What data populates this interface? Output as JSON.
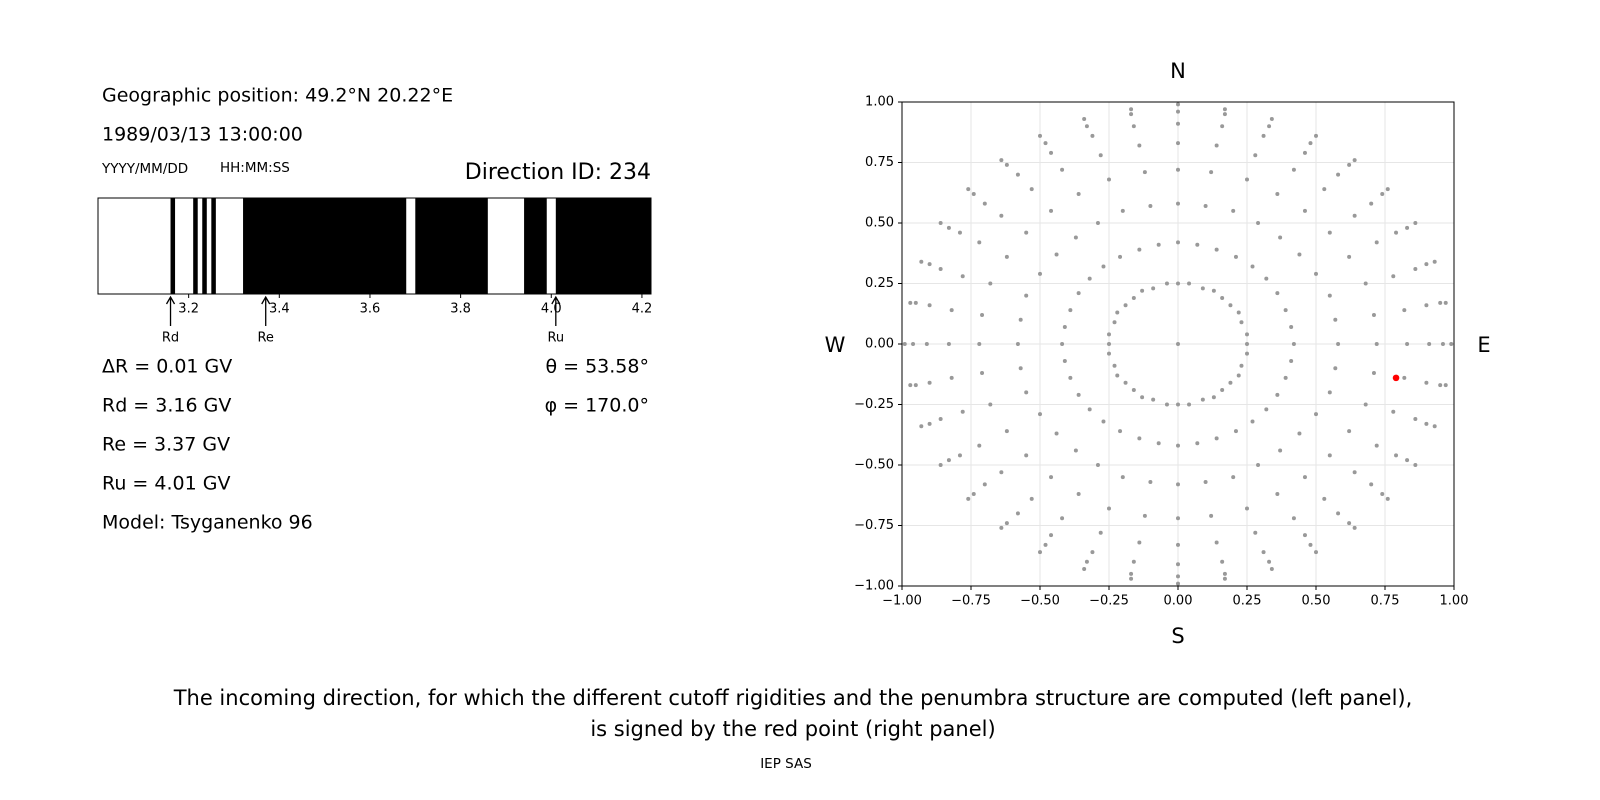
{
  "header": {
    "position": "Geographic position: 49.2°N 20.22°E",
    "datetime": "1989/03/13 13:00:00",
    "date_format": "YYYY/MM/DD",
    "time_format": "HH:MM:SS",
    "direction_id": "Direction ID: 234"
  },
  "params": {
    "delta_r": "ΔR = 0.01 GV",
    "theta": "θ = 53.58°",
    "phi": "φ = 170.0°",
    "model": "Model: Tsyganenko 96"
  },
  "chart_data": [
    {
      "type": "penumbra",
      "xlim": [
        3.0,
        4.22
      ],
      "xticks": [
        3.2,
        3.4,
        3.6,
        3.8,
        {
          "value": 4,
          "label": "4.0"
        },
        4.2
      ],
      "color": "#000000",
      "segments": [
        [
          3.16,
          3.17
        ],
        [
          3.21,
          3.22
        ],
        [
          3.23,
          3.24
        ],
        [
          3.25,
          3.26
        ],
        [
          3.32,
          3.68
        ],
        [
          3.7,
          3.86
        ],
        [
          3.94,
          3.99
        ],
        [
          4.01,
          4.22
        ]
      ],
      "cutoffs": [
        {
          "name": "Rd",
          "value": 3.16,
          "label": "Rd = 3.16 GV"
        },
        {
          "name": "Re",
          "value": 3.37,
          "label": "Re = 3.37 GV"
        },
        {
          "name": "Ru",
          "value": 4.01,
          "label": "Ru = 4.01 GV"
        }
      ]
    },
    {
      "type": "scatter",
      "xlim": [
        -1,
        1
      ],
      "ylim": [
        -1,
        1
      ],
      "grid": true,
      "xticks": [
        {
          "value": -1,
          "label": "−1.00"
        },
        {
          "value": -0.75,
          "label": "−0.75"
        },
        {
          "value": -0.5,
          "label": "−0.50"
        },
        {
          "value": -0.25,
          "label": "−0.25"
        },
        {
          "value": 0,
          "label": "0.00"
        },
        {
          "value": 0.25,
          "label": "0.25"
        },
        {
          "value": 0.5,
          "label": "0.50"
        },
        {
          "value": 0.75,
          "label": "0.75"
        },
        {
          "value": 1,
          "label": "1.00"
        }
      ],
      "yticks": [
        {
          "value": -1,
          "label": "−1.00"
        },
        {
          "value": -0.75,
          "label": "−0.75"
        },
        {
          "value": -0.5,
          "label": "−0.50"
        },
        {
          "value": -0.25,
          "label": "−0.25"
        },
        {
          "value": 0,
          "label": "0.00"
        },
        {
          "value": 0.25,
          "label": "0.25"
        },
        {
          "value": 0.5,
          "label": "0.50"
        },
        {
          "value": 0.75,
          "label": "0.75"
        },
        {
          "value": 1,
          "label": "1.00"
        }
      ],
      "compass": {
        "north": "N",
        "south": "S",
        "east": "E",
        "west": "W"
      },
      "series": [
        {
          "color": "#999999",
          "x": [
            0.25,
            0.25,
            0.23,
            0.22,
            0.19,
            0.16,
            0.13,
            0.09,
            0.04,
            0,
            -0.04,
            -0.09,
            -0.13,
            -0.16,
            -0.19,
            -0.22,
            -0.23,
            -0.25,
            -0.25,
            -0.25,
            -0.23,
            -0.22,
            -0.19,
            -0.16,
            -0.13,
            -0.09,
            -0.04,
            0,
            0.04,
            0.09,
            0.13,
            0.16,
            0.19,
            0.22,
            0.23,
            0.25,
            0.42,
            0.41,
            0.39,
            0.36,
            0.32,
            0.27,
            0.21,
            0.14,
            0.07,
            0,
            -0.07,
            -0.14,
            -0.21,
            -0.27,
            -0.32,
            -0.36,
            -0.39,
            -0.41,
            -0.42,
            -0.41,
            -0.39,
            -0.36,
            -0.32,
            -0.27,
            -0.21,
            -0.14,
            -0.07,
            0,
            0.07,
            0.14,
            0.21,
            0.27,
            0.32,
            0.36,
            0.39,
            0.41,
            0.58,
            0.57,
            0.55,
            0.5,
            0.44,
            0.37,
            0.29,
            0.2,
            0.1,
            0,
            -0.1,
            -0.2,
            -0.29,
            -0.37,
            -0.44,
            -0.5,
            -0.55,
            -0.57,
            -0.58,
            -0.57,
            -0.55,
            -0.5,
            -0.44,
            -0.37,
            -0.29,
            -0.2,
            -0.1,
            0,
            0.1,
            0.2,
            0.29,
            0.37,
            0.44,
            0.5,
            0.55,
            0.57,
            0.72,
            0.71,
            0.68,
            0.62,
            0.55,
            0.46,
            0.36,
            0.25,
            0.12,
            0,
            -0.12,
            -0.25,
            -0.36,
            -0.46,
            -0.55,
            -0.62,
            -0.68,
            -0.71,
            -0.72,
            -0.71,
            -0.68,
            -0.62,
            -0.55,
            -0.46,
            -0.36,
            -0.25,
            -0.12,
            0,
            0.12,
            0.25,
            0.36,
            0.46,
            0.55,
            0.62,
            0.68,
            0.71,
            0.83,
            0.82,
            0.78,
            0.72,
            0.64,
            0.53,
            0.42,
            0.28,
            0.14,
            0,
            -0.14,
            -0.28,
            -0.42,
            -0.53,
            -0.64,
            -0.72,
            -0.78,
            -0.82,
            -0.83,
            -0.82,
            -0.78,
            -0.72,
            -0.64,
            -0.53,
            -0.42,
            -0.28,
            -0.14,
            0,
            0.14,
            0.28,
            0.42,
            0.53,
            0.64,
            0.72,
            0.78,
            0.82,
            0.91,
            0.9,
            0.86,
            0.79,
            0.7,
            0.58,
            0.46,
            0.31,
            0.16,
            0,
            -0.16,
            -0.31,
            -0.46,
            -0.58,
            -0.7,
            -0.79,
            -0.86,
            -0.9,
            -0.91,
            -0.9,
            -0.86,
            -0.79,
            -0.7,
            -0.58,
            -0.46,
            -0.31,
            -0.16,
            0,
            0.16,
            0.31,
            0.46,
            0.58,
            0.7,
            0.79,
            0.86,
            0.9,
            0.96,
            0.95,
            0.9,
            0.83,
            0.74,
            0.62,
            0.48,
            0.33,
            0.17,
            0,
            -0.17,
            -0.33,
            -0.48,
            -0.62,
            -0.74,
            -0.83,
            -0.9,
            -0.95,
            -0.96,
            -0.95,
            -0.9,
            -0.83,
            -0.74,
            -0.62,
            -0.48,
            -0.33,
            -0.17,
            0,
            0.17,
            0.33,
            0.48,
            0.62,
            0.74,
            0.83,
            0.9,
            0.95,
            0.99,
            0.97,
            0.93,
            0.86,
            0.76,
            0.64,
            0.5,
            0.34,
            0.17,
            0,
            -0.17,
            -0.34,
            -0.5,
            -0.64,
            -0.76,
            -0.86,
            -0.93,
            -0.97,
            -0.99,
            -0.97,
            -0.93,
            -0.86,
            -0.76,
            -0.64,
            -0.5,
            -0.34,
            -0.17,
            0,
            0.17,
            0.34,
            0.5,
            0.64,
            0.76,
            0.86,
            0.93,
            0.97,
            0
          ],
          "values": [
            0,
            0.04,
            0.09,
            0.13,
            0.16,
            0.19,
            0.22,
            0.23,
            0.25,
            0.25,
            0.25,
            0.23,
            0.22,
            0.19,
            0.16,
            0.13,
            0.09,
            0.04,
            0,
            -0.04,
            -0.09,
            -0.13,
            -0.16,
            -0.19,
            -0.22,
            -0.23,
            -0.25,
            -0.25,
            -0.25,
            -0.23,
            -0.22,
            -0.19,
            -0.16,
            -0.13,
            -0.09,
            -0.04,
            0,
            0.07,
            0.14,
            0.21,
            0.27,
            0.32,
            0.36,
            0.39,
            0.41,
            0.42,
            0.41,
            0.39,
            0.36,
            0.32,
            0.27,
            0.21,
            0.14,
            0.07,
            0,
            -0.07,
            -0.14,
            -0.21,
            -0.27,
            -0.32,
            -0.36,
            -0.39,
            -0.41,
            -0.42,
            -0.41,
            -0.39,
            -0.36,
            -0.32,
            -0.27,
            -0.21,
            -0.14,
            -0.07,
            0,
            0.1,
            0.2,
            0.29,
            0.37,
            0.44,
            0.5,
            0.55,
            0.57,
            0.58,
            0.57,
            0.55,
            0.5,
            0.44,
            0.37,
            0.29,
            0.2,
            0.1,
            0,
            -0.1,
            -0.2,
            -0.29,
            -0.37,
            -0.44,
            -0.5,
            -0.55,
            -0.57,
            -0.58,
            -0.57,
            -0.55,
            -0.5,
            -0.44,
            -0.37,
            -0.29,
            -0.2,
            -0.1,
            0,
            0.12,
            0.25,
            0.36,
            0.46,
            0.55,
            0.62,
            0.68,
            0.71,
            0.72,
            0.71,
            0.68,
            0.62,
            0.55,
            0.46,
            0.36,
            0.25,
            0.12,
            0,
            -0.12,
            -0.25,
            -0.36,
            -0.46,
            -0.55,
            -0.62,
            -0.68,
            -0.71,
            -0.72,
            -0.71,
            -0.68,
            -0.62,
            -0.55,
            -0.46,
            -0.36,
            -0.25,
            -0.12,
            0,
            0.14,
            0.28,
            0.42,
            0.53,
            0.64,
            0.72,
            0.78,
            0.82,
            0.83,
            0.82,
            0.78,
            0.72,
            0.64,
            0.53,
            0.42,
            0.28,
            0.14,
            0,
            -0.14,
            -0.28,
            -0.42,
            -0.53,
            -0.64,
            -0.72,
            -0.78,
            -0.82,
            -0.83,
            -0.82,
            -0.78,
            -0.72,
            -0.64,
            -0.53,
            -0.42,
            -0.28,
            -0.14,
            0,
            0.16,
            0.31,
            0.46,
            0.58,
            0.7,
            0.79,
            0.86,
            0.9,
            0.91,
            0.9,
            0.86,
            0.79,
            0.7,
            0.58,
            0.46,
            0.31,
            0.16,
            0,
            -0.16,
            -0.31,
            -0.46,
            -0.58,
            -0.7,
            -0.79,
            -0.86,
            -0.9,
            -0.91,
            -0.9,
            -0.86,
            -0.79,
            -0.7,
            -0.58,
            -0.46,
            -0.31,
            -0.16,
            0,
            0.17,
            0.33,
            0.48,
            0.62,
            0.74,
            0.83,
            0.9,
            0.95,
            0.96,
            0.95,
            0.9,
            0.83,
            0.74,
            0.62,
            0.48,
            0.33,
            0.17,
            0,
            -0.17,
            -0.33,
            -0.48,
            -0.62,
            -0.74,
            -0.83,
            -0.9,
            -0.95,
            -0.96,
            -0.95,
            -0.9,
            -0.83,
            -0.74,
            -0.62,
            -0.48,
            -0.33,
            -0.17,
            0,
            0.17,
            0.34,
            0.5,
            0.64,
            0.76,
            0.86,
            0.93,
            0.97,
            0.99,
            0.97,
            0.93,
            0.86,
            0.76,
            0.64,
            0.5,
            0.34,
            0.17,
            0,
            -0.17,
            -0.34,
            -0.5,
            -0.64,
            -0.76,
            -0.86,
            -0.93,
            -0.97,
            -0.99,
            -0.97,
            -0.93,
            -0.86,
            -0.76,
            -0.64,
            -0.5,
            -0.34,
            -0.17,
            0
          ]
        },
        {
          "color": "#ff0000",
          "x": [
            0.79
          ],
          "values": [
            -0.14
          ]
        }
      ]
    }
  ],
  "caption": [
    "The incoming direction, for which the different cutoff rigidities and the penumbra structure are computed (left panel),",
    "is signed by the red point (right panel)"
  ],
  "footer": "IEP SAS"
}
